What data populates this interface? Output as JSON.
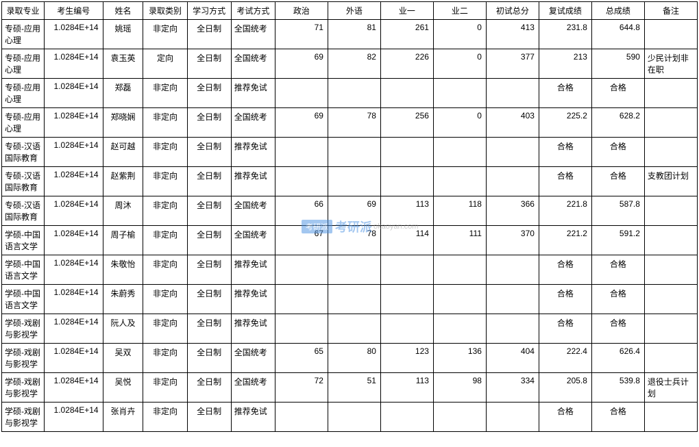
{
  "headers": [
    "录取专业",
    "考生编号",
    "姓名",
    "录取类别",
    "学习方式",
    "考试方式",
    "政治",
    "外语",
    "业一",
    "业二",
    "初试总分",
    "复试成绩",
    "总成绩",
    "备注"
  ],
  "rows": [
    {
      "major": "专硕-应用心理",
      "id": "1.0284E+14",
      "name": "姚瑶",
      "type": "非定向",
      "mode": "全日制",
      "exam": "全国统考",
      "s1": "71",
      "s2": "81",
      "s3": "261",
      "s4": "0",
      "prelim": "413",
      "retest": "231.8",
      "total": "644.8",
      "note": "",
      "tall": true
    },
    {
      "major": "专硕-应用心理",
      "id": "1.0284E+14",
      "name": "袁玉英",
      "type": "定向",
      "mode": "全日制",
      "exam": "全国统考",
      "s1": "69",
      "s2": "82",
      "s3": "226",
      "s4": "0",
      "prelim": "377",
      "retest": "213",
      "total": "590",
      "note": "少民计划非在职",
      "tall": true
    },
    {
      "major": "专硕-应用心理",
      "id": "1.0284E+14",
      "name": "郑磊",
      "type": "非定向",
      "mode": "全日制",
      "exam": "推荐免试",
      "s1": "",
      "s2": "",
      "s3": "",
      "s4": "",
      "prelim": "",
      "retest": "合格",
      "total": "合格",
      "note": "",
      "tall": true
    },
    {
      "major": "专硕-应用心理",
      "id": "1.0284E+14",
      "name": "郑晓娴",
      "type": "非定向",
      "mode": "全日制",
      "exam": "全国统考",
      "s1": "69",
      "s2": "78",
      "s3": "256",
      "s4": "0",
      "prelim": "403",
      "retest": "225.2",
      "total": "628.2",
      "note": "",
      "tall": true
    },
    {
      "major": "专硕-汉语国际教育",
      "id": "1.0284E+14",
      "name": "赵可越",
      "type": "非定向",
      "mode": "全日制",
      "exam": "推荐免试",
      "s1": "",
      "s2": "",
      "s3": "",
      "s4": "",
      "prelim": "",
      "retest": "合格",
      "total": "合格",
      "note": "",
      "tall": true
    },
    {
      "major": "专硕-汉语国际教育",
      "id": "1.0284E+14",
      "name": "赵紫荆",
      "type": "非定向",
      "mode": "全日制",
      "exam": "推荐免试",
      "s1": "",
      "s2": "",
      "s3": "",
      "s4": "",
      "prelim": "",
      "retest": "合格",
      "total": "合格",
      "note": "支教团计划",
      "tall": true
    },
    {
      "major": "专硕-汉语国际教育",
      "id": "1.0284E+14",
      "name": "周沐",
      "type": "非定向",
      "mode": "全日制",
      "exam": "全国统考",
      "s1": "66",
      "s2": "69",
      "s3": "113",
      "s4": "118",
      "prelim": "366",
      "retest": "221.8",
      "total": "587.8",
      "note": "",
      "tall": true
    },
    {
      "major": "学硕-中国语言文学",
      "id": "1.0284E+14",
      "name": "周子榆",
      "type": "非定向",
      "mode": "全日制",
      "exam": "全国统考",
      "s1": "67",
      "s2": "78",
      "s3": "114",
      "s4": "111",
      "prelim": "370",
      "retest": "221.2",
      "total": "591.2",
      "note": "",
      "tall": true
    },
    {
      "major": "学硕-中国语言文学",
      "id": "1.0284E+14",
      "name": "朱敬怡",
      "type": "非定向",
      "mode": "全日制",
      "exam": "推荐免试",
      "s1": "",
      "s2": "",
      "s3": "",
      "s4": "",
      "prelim": "",
      "retest": "合格",
      "total": "合格",
      "note": "",
      "tall": true
    },
    {
      "major": "学硕-中国语言文学",
      "id": "1.0284E+14",
      "name": "朱蔚秀",
      "type": "非定向",
      "mode": "全日制",
      "exam": "推荐免试",
      "s1": "",
      "s2": "",
      "s3": "",
      "s4": "",
      "prelim": "",
      "retest": "合格",
      "total": "合格",
      "note": "",
      "tall": true
    },
    {
      "major": "学硕-戏剧与影视学",
      "id": "1.0284E+14",
      "name": "阮人及",
      "type": "非定向",
      "mode": "全日制",
      "exam": "推荐免试",
      "s1": "",
      "s2": "",
      "s3": "",
      "s4": "",
      "prelim": "",
      "retest": "合格",
      "total": "合格",
      "note": "",
      "tall": true
    },
    {
      "major": "学硕-戏剧与影视学",
      "id": "1.0284E+14",
      "name": "吴双",
      "type": "非定向",
      "mode": "全日制",
      "exam": "全国统考",
      "s1": "65",
      "s2": "80",
      "s3": "123",
      "s4": "136",
      "prelim": "404",
      "retest": "222.4",
      "total": "626.4",
      "note": "",
      "tall": true
    },
    {
      "major": "学硕-戏剧与影视学",
      "id": "1.0284E+14",
      "name": "吴悦",
      "type": "非定向",
      "mode": "全日制",
      "exam": "全国统考",
      "s1": "72",
      "s2": "51",
      "s3": "113",
      "s4": "98",
      "prelim": "334",
      "retest": "205.8",
      "total": "539.8",
      "note": "退役士兵计划",
      "tall": true
    },
    {
      "major": "学硕-戏剧与影视学",
      "id": "1.0284E+14",
      "name": "张肖卉",
      "type": "非定向",
      "mode": "全日制",
      "exam": "推荐免试",
      "s1": "",
      "s2": "",
      "s3": "",
      "s4": "",
      "prelim": "",
      "retest": "合格",
      "total": "合格",
      "note": "",
      "tall": true
    }
  ],
  "watermark": {
    "badge": "考研派",
    "text1": "考研派",
    "text2": "okaoyan.com"
  }
}
